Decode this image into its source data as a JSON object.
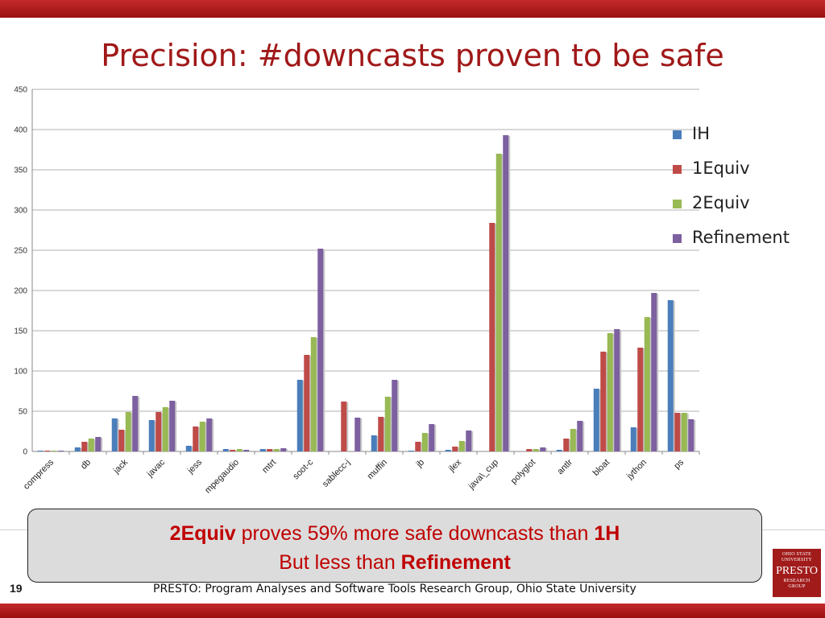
{
  "slide": {
    "title": "Precision: #downcasts proven to be safe",
    "callout": {
      "line1_bold_a": "2Equiv",
      "line1_mid": " proves 59% more safe downcasts than ",
      "line1_bold_b": "1H",
      "line2_prefix": "But less than ",
      "line2_bold": "Refinement"
    },
    "slide_number": "19",
    "footer": "PRESTO: Program Analyses and Software Tools Research Group, Ohio State University",
    "logo": {
      "line1": "OHIO STATE",
      "line2": "UNIVERSITY",
      "name": "PRESTO",
      "line3": "RESEARCH",
      "line4": "GROUP"
    },
    "colors": {
      "accent_red": "#a01818",
      "callout_text": "#c00000"
    }
  },
  "chart_data": {
    "type": "bar",
    "ylim": [
      0,
      450
    ],
    "yticks": [
      0,
      50,
      100,
      150,
      200,
      250,
      300,
      350,
      400,
      450
    ],
    "grid": true,
    "legend_position": "right",
    "categories": [
      "compress",
      "db",
      "jack",
      "javac",
      "jess",
      "mpegaudio",
      "mtrt",
      "soot-c",
      "sablecc-j",
      "muffin",
      "jb",
      "jlex",
      "java\\_cup",
      "polyglot",
      "antlr",
      "bloat",
      "jython",
      "ps"
    ],
    "series": [
      {
        "name": "IH",
        "color": "#4a7ebb",
        "values": [
          1,
          5,
          41,
          39,
          7,
          3,
          3,
          89,
          0,
          20,
          1,
          2,
          0,
          0,
          2,
          78,
          30,
          188
        ]
      },
      {
        "name": "1Equiv",
        "color": "#be4b48",
        "values": [
          1,
          12,
          27,
          49,
          31,
          2,
          3,
          120,
          62,
          43,
          12,
          6,
          284,
          3,
          16,
          124,
          129,
          48
        ]
      },
      {
        "name": "2Equiv",
        "color": "#98b954",
        "values": [
          1,
          16,
          49,
          55,
          37,
          3,
          3,
          142,
          0,
          68,
          23,
          13,
          370,
          3,
          28,
          147,
          167,
          48
        ]
      },
      {
        "name": "Refinement",
        "color": "#7d60a0",
        "values": [
          1,
          18,
          69,
          63,
          41,
          2,
          4,
          252,
          42,
          89,
          34,
          26,
          393,
          5,
          38,
          152,
          197,
          40
        ]
      }
    ]
  }
}
